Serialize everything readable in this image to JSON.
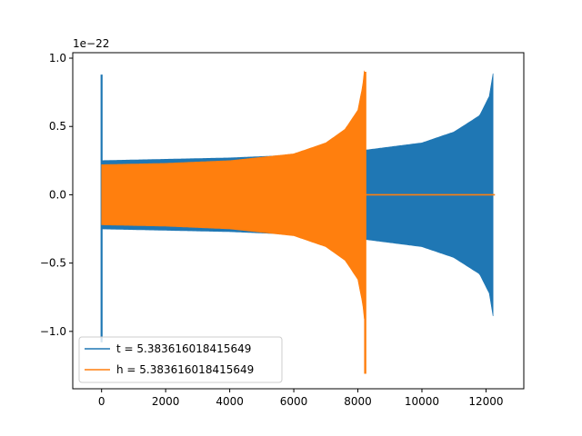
{
  "chart_data": {
    "type": "line",
    "title": "",
    "xlabel": "",
    "ylabel": "",
    "y_offset_label": "1e−22",
    "xlim": [
      -900,
      13180
    ],
    "ylim": [
      -1.42,
      1.04
    ],
    "x_ticks": [
      0,
      2000,
      4000,
      6000,
      8000,
      10000,
      12000
    ],
    "x_tick_labels": [
      "0",
      "2000",
      "4000",
      "6000",
      "8000",
      "10000",
      "12000"
    ],
    "y_ticks": [
      -1.0,
      -0.5,
      0.0,
      0.5,
      1.0
    ],
    "y_tick_labels": [
      "−1.0",
      "−0.5",
      "0.0",
      "0.5",
      "1.0"
    ],
    "grid": false,
    "legend_position": "bottom-left",
    "series": [
      {
        "name": "t = 5.383616018415649",
        "color": "#1f77b4",
        "x_start": 0,
        "x_end": 12280,
        "initial_spike": {
          "x": 0,
          "max": 0.88,
          "min": -1.08
        },
        "envelope": [
          [
            0,
            0.25
          ],
          [
            2000,
            0.26
          ],
          [
            4000,
            0.27
          ],
          [
            6000,
            0.29
          ],
          [
            8000,
            0.32
          ],
          [
            10000,
            0.38
          ],
          [
            11000,
            0.46
          ],
          [
            11800,
            0.58
          ],
          [
            12100,
            0.72
          ],
          [
            12250,
            0.93
          ],
          [
            12280,
            0.0
          ]
        ]
      },
      {
        "name": "h = 5.383616018415649",
        "color": "#ff7f0e",
        "x_start": 0,
        "x_end": 12280,
        "chirp_end": 8230,
        "envelope": [
          [
            0,
            0.22
          ],
          [
            2000,
            0.23
          ],
          [
            4000,
            0.25
          ],
          [
            6000,
            0.3
          ],
          [
            7000,
            0.38
          ],
          [
            7600,
            0.48
          ],
          [
            8000,
            0.62
          ],
          [
            8150,
            0.8
          ],
          [
            8210,
            0.93
          ]
        ],
        "peak_min": -1.31
      }
    ]
  }
}
